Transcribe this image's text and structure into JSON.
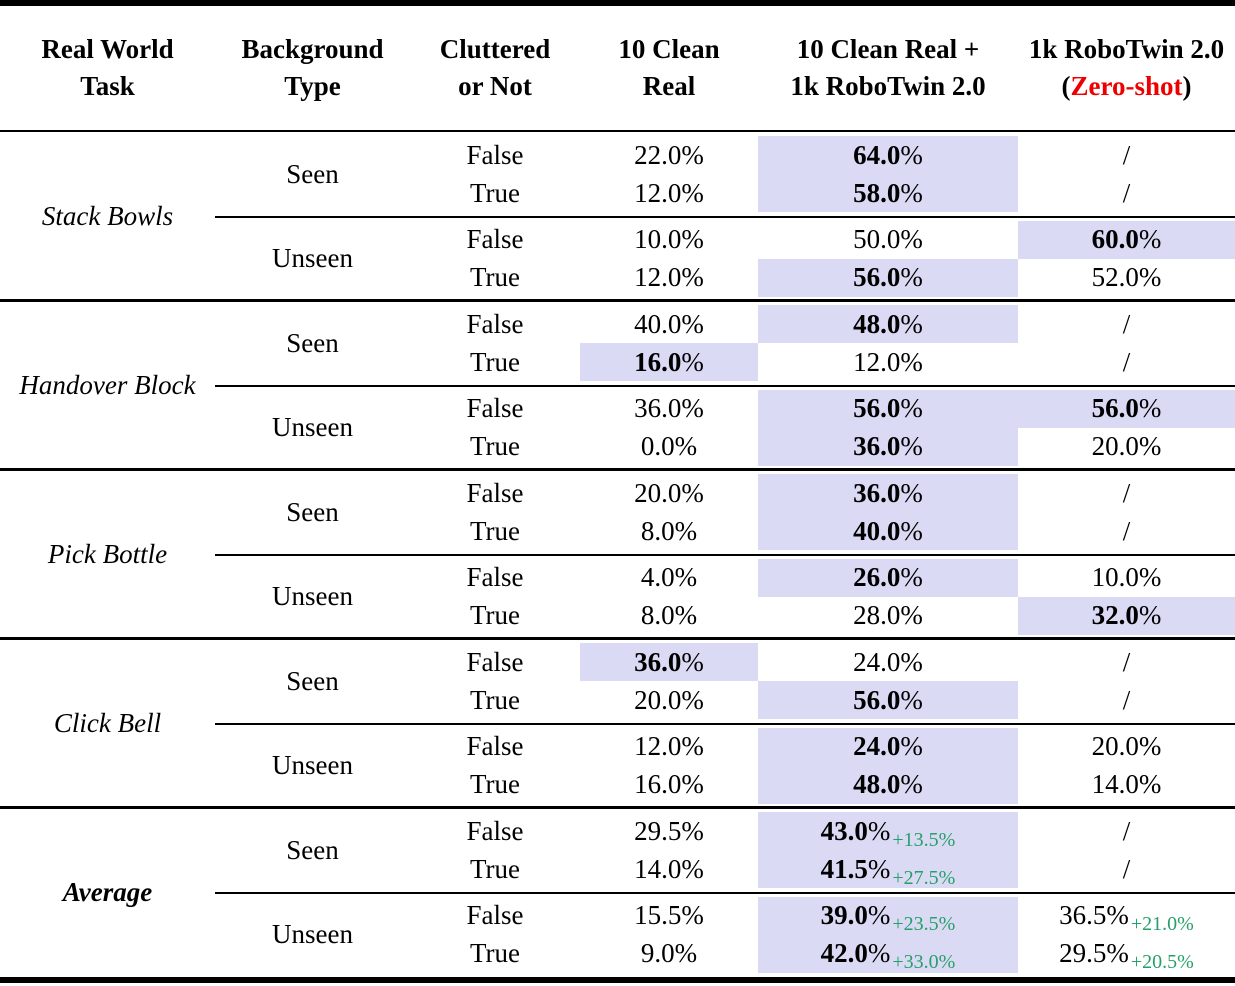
{
  "colors": {
    "highlight": "#dadaf5",
    "gain": "#26a069",
    "red": "#ef0000"
  },
  "columns": [
    {
      "lines": [
        "Real World",
        "Task"
      ]
    },
    {
      "lines": [
        "Background",
        "Type"
      ]
    },
    {
      "lines": [
        "Cluttered",
        "or Not"
      ]
    },
    {
      "lines": [
        "10 Clean",
        "Real"
      ]
    },
    {
      "lines": [
        "10 Clean Real +",
        "1k RoboTwin 2.0"
      ]
    },
    {
      "lines": [
        "1k RoboTwin 2.0"
      ],
      "line2": {
        "pre": "(",
        "red": "Zero-shot",
        "post": ")"
      }
    }
  ],
  "sections": [
    {
      "task": "Stack Bowls",
      "groups": [
        {
          "background": "Seen",
          "rows": [
            {
              "cluttered": "False",
              "clean_real": {
                "num": "22.0",
                "suffix": "%"
              },
              "combo": {
                "num": "64.0",
                "suffix": "%",
                "bold": true,
                "hl": true
              },
              "zero_shot": {
                "num": "/",
                "suffix": ""
              }
            },
            {
              "cluttered": "True",
              "clean_real": {
                "num": "12.0",
                "suffix": "%"
              },
              "combo": {
                "num": "58.0",
                "suffix": "%",
                "bold": true,
                "hl": true
              },
              "zero_shot": {
                "num": "/",
                "suffix": ""
              }
            }
          ]
        },
        {
          "background": "Unseen",
          "rows": [
            {
              "cluttered": "False",
              "clean_real": {
                "num": "10.0",
                "suffix": "%"
              },
              "combo": {
                "num": "50.0",
                "suffix": "%"
              },
              "zero_shot": {
                "num": "60.0",
                "suffix": "%",
                "bold": true,
                "hl": true
              }
            },
            {
              "cluttered": "True",
              "clean_real": {
                "num": "12.0",
                "suffix": "%"
              },
              "combo": {
                "num": "56.0",
                "suffix": "%",
                "bold": true,
                "hl": true
              },
              "zero_shot": {
                "num": "52.0",
                "suffix": "%"
              }
            }
          ]
        }
      ]
    },
    {
      "task": "Handover Block",
      "groups": [
        {
          "background": "Seen",
          "rows": [
            {
              "cluttered": "False",
              "clean_real": {
                "num": "40.0",
                "suffix": "%"
              },
              "combo": {
                "num": "48.0",
                "suffix": "%",
                "bold": true,
                "hl": true
              },
              "zero_shot": {
                "num": "/",
                "suffix": ""
              }
            },
            {
              "cluttered": "True",
              "clean_real": {
                "num": "16.0",
                "suffix": "%",
                "bold": true,
                "hl": true
              },
              "combo": {
                "num": "12.0",
                "suffix": "%"
              },
              "zero_shot": {
                "num": "/",
                "suffix": ""
              }
            }
          ]
        },
        {
          "background": "Unseen",
          "rows": [
            {
              "cluttered": "False",
              "clean_real": {
                "num": "36.0",
                "suffix": "%"
              },
              "combo": {
                "num": "56.0",
                "suffix": "%",
                "bold": true,
                "hl": true
              },
              "zero_shot": {
                "num": "56.0",
                "suffix": "%",
                "bold": true,
                "hl": true
              }
            },
            {
              "cluttered": "True",
              "clean_real": {
                "num": "0.0",
                "suffix": "%"
              },
              "combo": {
                "num": "36.0",
                "suffix": "%",
                "bold": true,
                "hl": true
              },
              "zero_shot": {
                "num": "20.0",
                "suffix": "%"
              }
            }
          ]
        }
      ]
    },
    {
      "task": "Pick Bottle",
      "groups": [
        {
          "background": "Seen",
          "rows": [
            {
              "cluttered": "False",
              "clean_real": {
                "num": "20.0",
                "suffix": "%"
              },
              "combo": {
                "num": "36.0",
                "suffix": "%",
                "bold": true,
                "hl": true
              },
              "zero_shot": {
                "num": "/",
                "suffix": ""
              }
            },
            {
              "cluttered": "True",
              "clean_real": {
                "num": "8.0",
                "suffix": "%"
              },
              "combo": {
                "num": "40.0",
                "suffix": "%",
                "bold": true,
                "hl": true
              },
              "zero_shot": {
                "num": "/",
                "suffix": ""
              }
            }
          ]
        },
        {
          "background": "Unseen",
          "rows": [
            {
              "cluttered": "False",
              "clean_real": {
                "num": "4.0",
                "suffix": "%"
              },
              "combo": {
                "num": "26.0",
                "suffix": "%",
                "bold": true,
                "hl": true
              },
              "zero_shot": {
                "num": "10.0",
                "suffix": "%"
              }
            },
            {
              "cluttered": "True",
              "clean_real": {
                "num": "8.0",
                "suffix": "%"
              },
              "combo": {
                "num": "28.0",
                "suffix": "%"
              },
              "zero_shot": {
                "num": "32.0",
                "suffix": "%",
                "bold": true,
                "hl": true
              }
            }
          ]
        }
      ]
    },
    {
      "task": "Click Bell",
      "groups": [
        {
          "background": "Seen",
          "rows": [
            {
              "cluttered": "False",
              "clean_real": {
                "num": "36.0",
                "suffix": "%",
                "bold": true,
                "hl": true
              },
              "combo": {
                "num": "24.0",
                "suffix": "%"
              },
              "zero_shot": {
                "num": "/",
                "suffix": ""
              }
            },
            {
              "cluttered": "True",
              "clean_real": {
                "num": "20.0",
                "suffix": "%"
              },
              "combo": {
                "num": "56.0",
                "suffix": "%",
                "bold": true,
                "hl": true
              },
              "zero_shot": {
                "num": "/",
                "suffix": ""
              }
            }
          ]
        },
        {
          "background": "Unseen",
          "rows": [
            {
              "cluttered": "False",
              "clean_real": {
                "num": "12.0",
                "suffix": "%"
              },
              "combo": {
                "num": "24.0",
                "suffix": "%",
                "bold": true,
                "hl": true
              },
              "zero_shot": {
                "num": "20.0",
                "suffix": "%"
              }
            },
            {
              "cluttered": "True",
              "clean_real": {
                "num": "16.0",
                "suffix": "%"
              },
              "combo": {
                "num": "48.0",
                "suffix": "%",
                "bold": true,
                "hl": true
              },
              "zero_shot": {
                "num": "14.0",
                "suffix": "%"
              }
            }
          ]
        }
      ]
    },
    {
      "task": "Average",
      "task_bold": true,
      "groups": [
        {
          "background": "Seen",
          "rows": [
            {
              "cluttered": "False",
              "clean_real": {
                "num": "29.5",
                "suffix": "%"
              },
              "combo": {
                "num": "43.0",
                "suffix": "%",
                "bold": true,
                "hl": true,
                "gain": "+13.5%"
              },
              "zero_shot": {
                "num": "/",
                "suffix": ""
              }
            },
            {
              "cluttered": "True",
              "clean_real": {
                "num": "14.0",
                "suffix": "%"
              },
              "combo": {
                "num": "41.5",
                "suffix": "%",
                "bold": true,
                "hl": true,
                "gain": "+27.5%"
              },
              "zero_shot": {
                "num": "/",
                "suffix": ""
              }
            }
          ]
        },
        {
          "background": "Unseen",
          "rows": [
            {
              "cluttered": "False",
              "clean_real": {
                "num": "15.5",
                "suffix": "%"
              },
              "combo": {
                "num": "39.0",
                "suffix": "%",
                "bold": true,
                "hl": true,
                "gain": "+23.5%"
              },
              "zero_shot": {
                "num": "36.5",
                "suffix": "%",
                "gain": "+21.0%"
              }
            },
            {
              "cluttered": "True",
              "clean_real": {
                "num": "9.0",
                "suffix": "%"
              },
              "combo": {
                "num": "42.0",
                "suffix": "%",
                "bold": true,
                "hl": true,
                "gain": "+33.0%"
              },
              "zero_shot": {
                "num": "29.5",
                "suffix": "%",
                "gain": "+20.5%"
              }
            }
          ]
        }
      ]
    }
  ]
}
